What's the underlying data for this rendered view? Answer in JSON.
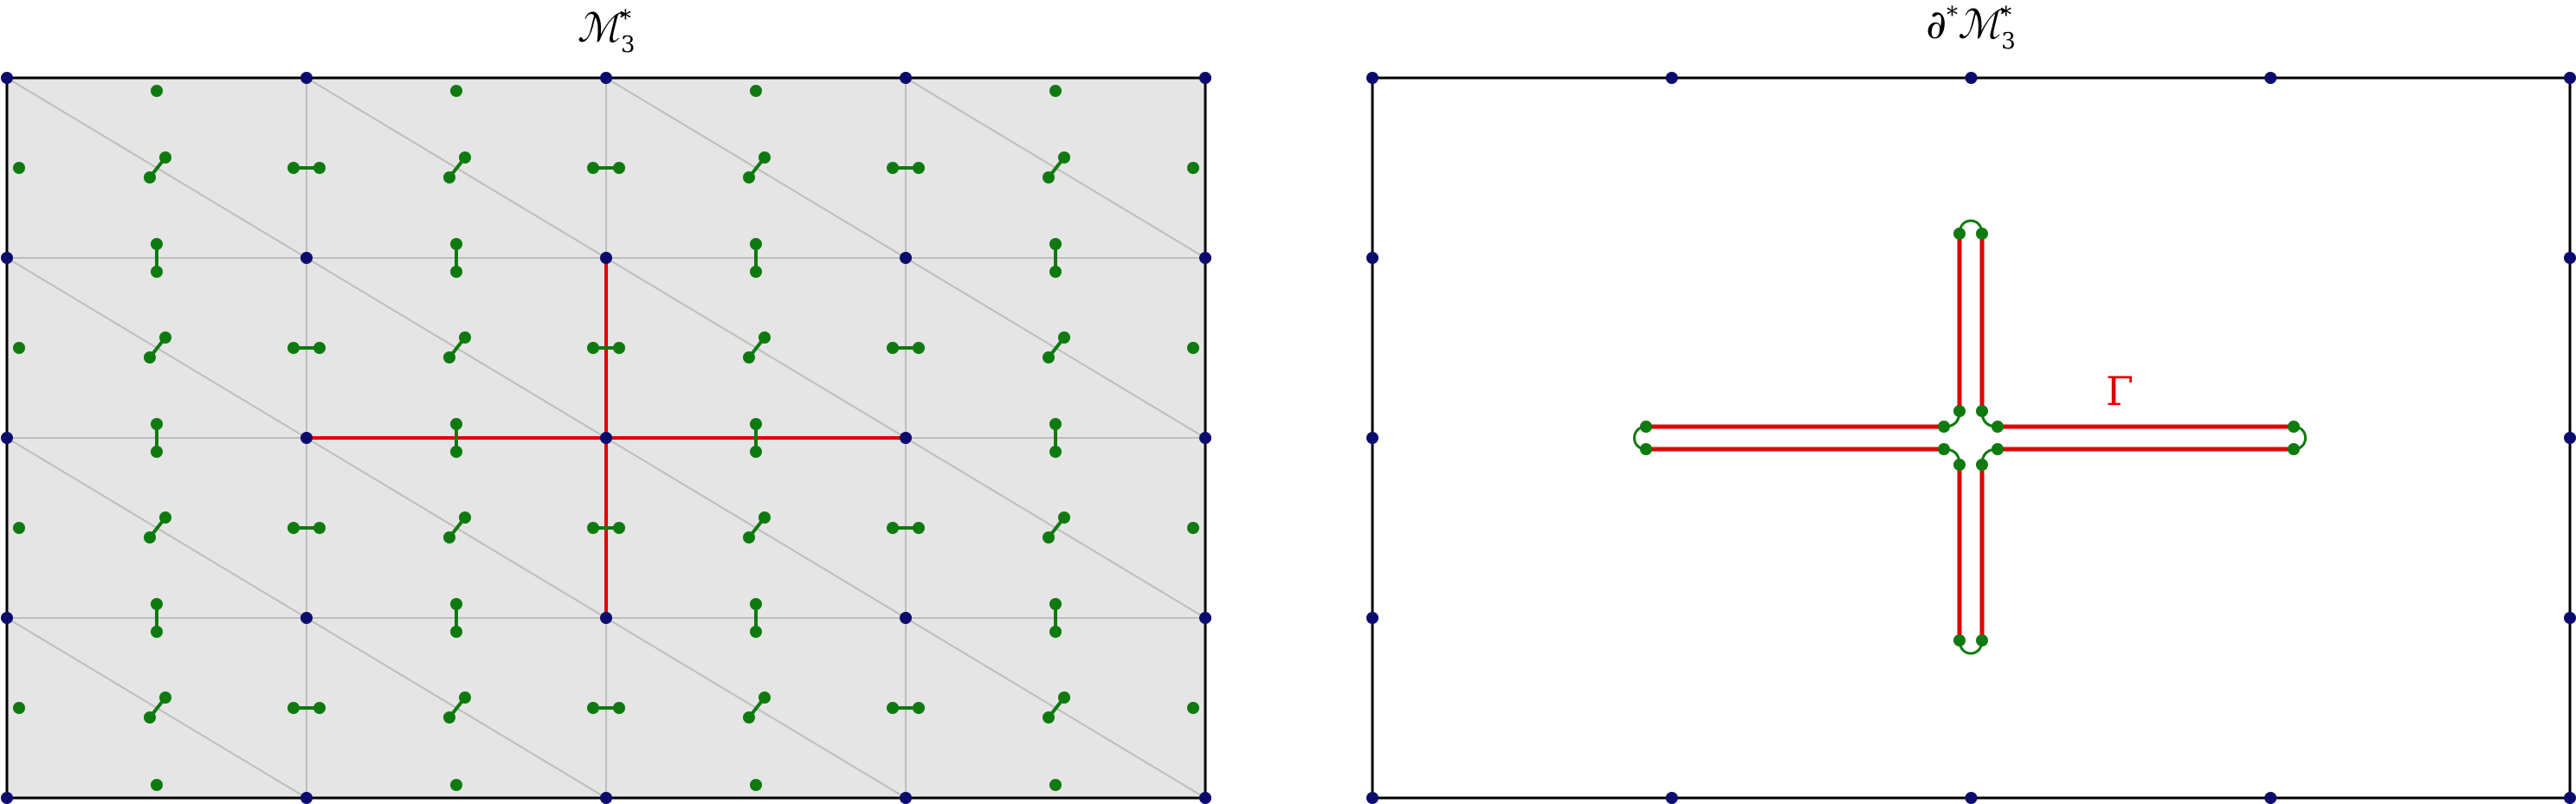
{
  "left_panel": {
    "title_main": "ℳ",
    "title_sup": "*",
    "title_sub": "3"
  },
  "right_panel": {
    "title_prefix": "∂",
    "title_prefix_sup": "*",
    "title_main": "ℳ",
    "title_sup": "*",
    "title_sub": "3",
    "curve_label": "Γ"
  },
  "colors": {
    "vertex": "#0b0b6e",
    "node": "#0f7a0f",
    "cut": "#e00000",
    "grid": "#bdbdbd",
    "fill": "#e5e5e5",
    "frame": "#000000"
  }
}
